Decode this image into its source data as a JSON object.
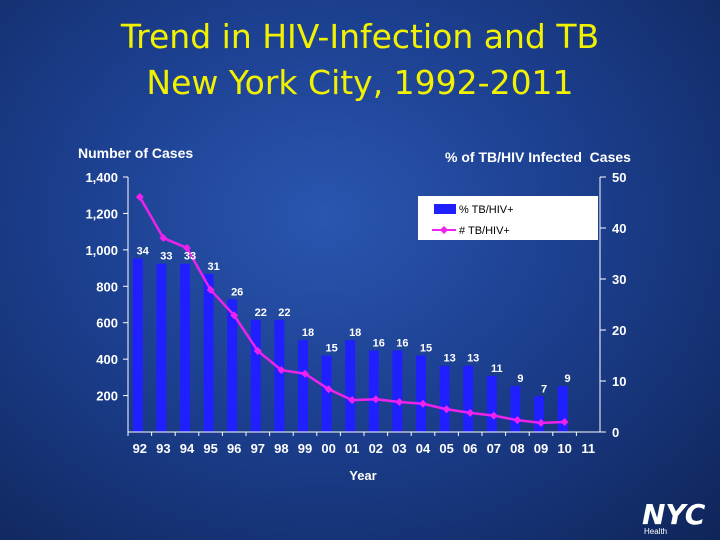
{
  "slide": {
    "title_line1": "Trend in HIV-Infection and TB",
    "title_line2": "New York City, 1992-2011"
  },
  "logo": {
    "text": "NYC",
    "subtext": "Health"
  },
  "colors": {
    "background": "#1c3f8f",
    "title": "#f2f200",
    "bar": "#1f1fff",
    "line": "#ee22ee",
    "axis_text": "#ffffff",
    "plot_bg": "#ffffff"
  },
  "chart_data": {
    "type": "bar+line",
    "title": "",
    "categories": [
      "92",
      "93",
      "94",
      "95",
      "96",
      "97",
      "98",
      "99",
      "00",
      "01",
      "02",
      "03",
      "04",
      "05",
      "06",
      "07",
      "08",
      "09",
      "10",
      "11"
    ],
    "xlabel": "Year",
    "ylabel_left": "Number of Cases",
    "ylabel_right": "% of TB/HIV Infected  Cases",
    "ylim_left": [
      0,
      1400
    ],
    "yticks_left": [
      200,
      400,
      600,
      800,
      1000,
      1200,
      1400
    ],
    "ytick_labels_left": [
      "200",
      "400",
      "600",
      "800",
      "1,000",
      "1,200",
      "1,400"
    ],
    "ylim_right": [
      0,
      50
    ],
    "yticks_right": [
      0,
      10,
      20,
      30,
      40,
      50
    ],
    "ytick_labels_right": [
      "0",
      "10",
      "20",
      "30",
      "40",
      "50"
    ],
    "legend_position": "top-right",
    "series": [
      {
        "name": "% TB/HIV+",
        "type": "bar",
        "axis": "right",
        "values": [
          34,
          33,
          33,
          31,
          26,
          22,
          22,
          18,
          15,
          18,
          16,
          16,
          15,
          13,
          13,
          11,
          9,
          7,
          9,
          null
        ],
        "labels": [
          "34",
          "33",
          "33",
          "31",
          "26",
          "22",
          "22",
          "18",
          "15",
          "18",
          "16",
          "16",
          "15",
          "13",
          "13",
          "11",
          "9",
          "7",
          "9",
          ""
        ]
      },
      {
        "name": "# TB/HIV+",
        "type": "line",
        "axis": "left",
        "values": [
          1290,
          1065,
          1010,
          780,
          640,
          445,
          340,
          320,
          235,
          175,
          180,
          165,
          155,
          125,
          105,
          90,
          65,
          50,
          55,
          null
        ]
      }
    ]
  }
}
